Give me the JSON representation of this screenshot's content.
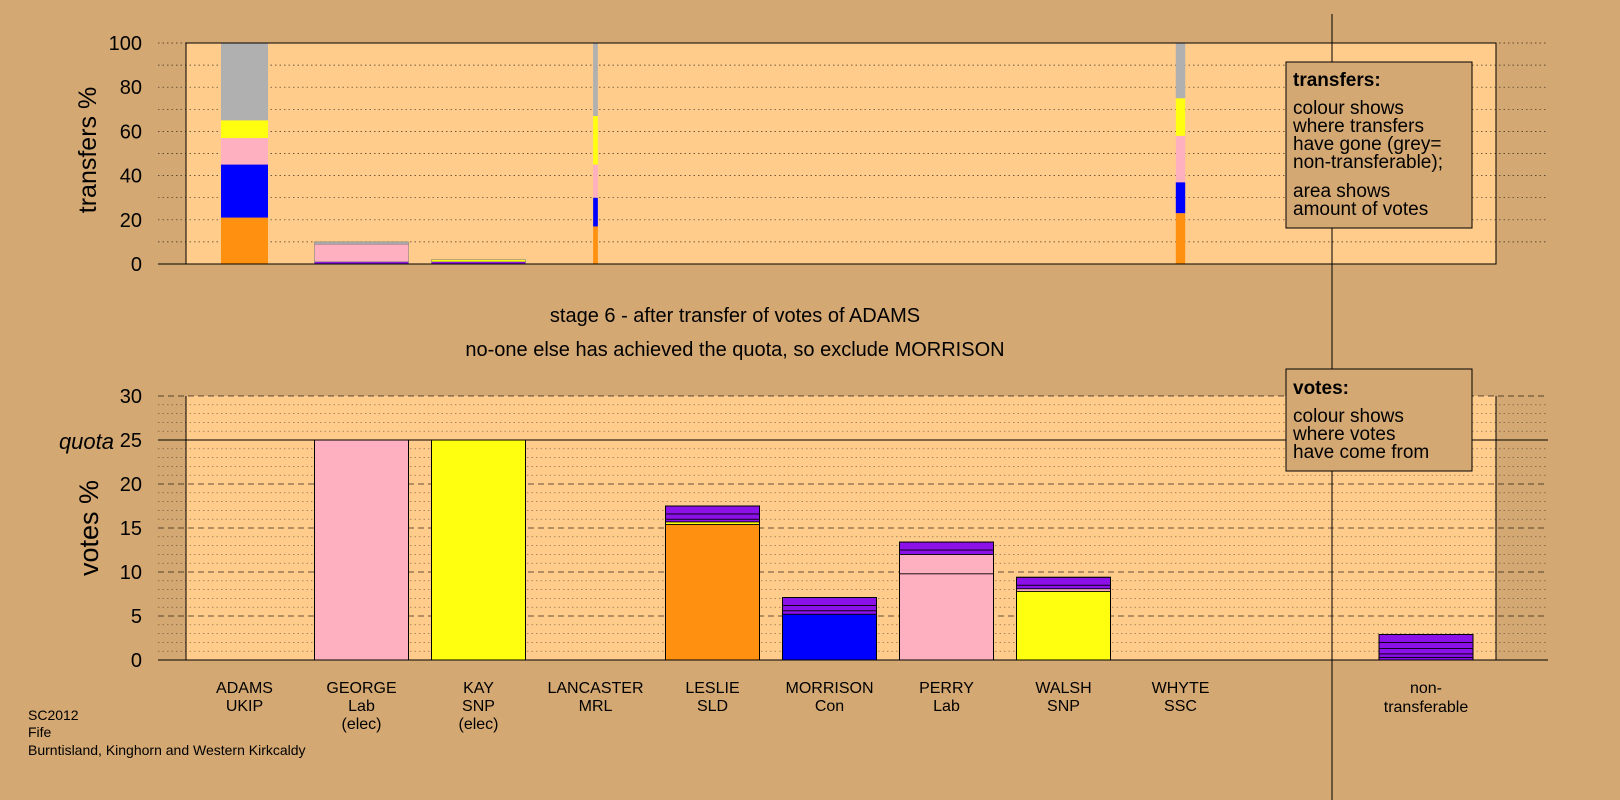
{
  "stage_title": "stage 6 - after transfer of votes of ADAMS",
  "stage_subtitle": "no-one else has achieved the quota, so exclude MORRISON",
  "footer": [
    "SC2012",
    "Fife",
    "Burntisland, Kinghorn and Western Kirkcaldy"
  ],
  "legend_transfers": {
    "title": "transfers:",
    "lines1": [
      "colour shows",
      "where transfers",
      "have gone (grey=",
      "non-transferable);"
    ],
    "lines2": [
      "area shows",
      "amount of votes"
    ]
  },
  "legend_votes": {
    "title": "votes:",
    "lines": [
      "colour shows",
      "where votes",
      "have come from"
    ]
  },
  "colors": {
    "plot_bg": "#ffcc8c",
    "page_bg": "#d4a873",
    "Lab": "#ffb0c0",
    "SNP": "#ffff10",
    "SLD": "#ff9010",
    "Con": "#0000ff",
    "Other": "#8c10e8",
    "nontransferable": "#b0b0b0"
  },
  "chart_data": [
    {
      "type": "bar",
      "ylabel": "transfers %",
      "ylim": [
        0,
        100
      ],
      "yticks": [
        0,
        20,
        40,
        60,
        80,
        100
      ],
      "grid": "dotted",
      "transfers": [
        {
          "candidate": "ADAMS",
          "width_share": 0.5,
          "segments": [
            {
              "party": "SLD",
              "value": 21
            },
            {
              "party": "Con",
              "value": 24
            },
            {
              "party": "Lab",
              "value": 12
            },
            {
              "party": "SNP",
              "value": 8
            },
            {
              "party": "nontransferable",
              "value": 35
            }
          ]
        },
        {
          "candidate": "GEORGE",
          "width_share": 1.0,
          "segments": [
            {
              "party": "Other",
              "value": 1
            },
            {
              "party": "Lab",
              "value": 8
            },
            {
              "party": "nontransferable",
              "value": 1
            }
          ]
        },
        {
          "candidate": "KAY",
          "width_share": 1.0,
          "segments": [
            {
              "party": "Other",
              "value": 1
            },
            {
              "party": "SNP",
              "value": 1
            }
          ]
        },
        {
          "candidate": "LANCASTER",
          "width_share": 0.05,
          "segments": [
            {
              "party": "SLD",
              "value": 17
            },
            {
              "party": "Con",
              "value": 13
            },
            {
              "party": "Lab",
              "value": 15
            },
            {
              "party": "SNP",
              "value": 22
            },
            {
              "party": "nontransferable",
              "value": 33
            }
          ]
        },
        {
          "candidate": "WHYTE",
          "width_share": 0.1,
          "segments": [
            {
              "party": "SLD",
              "value": 23
            },
            {
              "party": "Con",
              "value": 14
            },
            {
              "party": "Lab",
              "value": 21
            },
            {
              "party": "SNP",
              "value": 17
            },
            {
              "party": "nontransferable",
              "value": 25
            }
          ]
        }
      ]
    },
    {
      "type": "bar",
      "ylabel": "votes %",
      "ylim": [
        0,
        30
      ],
      "yticks": [
        0,
        5,
        10,
        15,
        20,
        25,
        30
      ],
      "quota": 25,
      "quota_label": "quota",
      "grid": "dashed",
      "categories": [
        {
          "name": "ADAMS",
          "party": "UKIP",
          "note": ""
        },
        {
          "name": "GEORGE",
          "party": "Lab",
          "note": "(elec)"
        },
        {
          "name": "KAY",
          "party": "SNP",
          "note": "(elec)"
        },
        {
          "name": "LANCASTER",
          "party": "MRL",
          "note": ""
        },
        {
          "name": "LESLIE",
          "party": "SLD",
          "note": ""
        },
        {
          "name": "MORRISON",
          "party": "Con",
          "note": ""
        },
        {
          "name": "PERRY",
          "party": "Lab",
          "note": ""
        },
        {
          "name": "WALSH",
          "party": "SNP",
          "note": ""
        },
        {
          "name": "WHYTE",
          "party": "SSC",
          "note": ""
        }
      ],
      "nontransferable_label": [
        "non-",
        "transferable"
      ],
      "bars": [
        [],
        [
          {
            "party": "Lab",
            "value": 25
          }
        ],
        [
          {
            "party": "SNP",
            "value": 25
          }
        ],
        [],
        [
          {
            "party": "SLD",
            "value": 15.4
          },
          {
            "party": "SNP",
            "value": 0.3
          },
          {
            "party": "Other",
            "value": 0.3
          },
          {
            "party": "Other",
            "value": 0.6
          },
          {
            "party": "Other",
            "value": 0.9
          }
        ],
        [
          {
            "party": "Con",
            "value": 5.2
          },
          {
            "party": "Other",
            "value": 0.4
          },
          {
            "party": "Other",
            "value": 0.6
          },
          {
            "party": "Other",
            "value": 0.9
          }
        ],
        [
          {
            "party": "Lab",
            "value": 9.8
          },
          {
            "party": "Lab",
            "value": 2.2
          },
          {
            "party": "Other",
            "value": 0.5
          },
          {
            "party": "Other",
            "value": 0.9
          }
        ],
        [
          {
            "party": "SNP",
            "value": 7.8
          },
          {
            "party": "Lab",
            "value": 0.3
          },
          {
            "party": "Other",
            "value": 0.4
          },
          {
            "party": "Other",
            "value": 0.9
          }
        ],
        []
      ],
      "nontransferable_bar": [
        {
          "party": "Other",
          "value": 0.3
        },
        {
          "party": "Other",
          "value": 0.4
        },
        {
          "party": "Other",
          "value": 0.6
        },
        {
          "party": "Other",
          "value": 0.7
        },
        {
          "party": "Other",
          "value": 0.9
        }
      ]
    }
  ]
}
